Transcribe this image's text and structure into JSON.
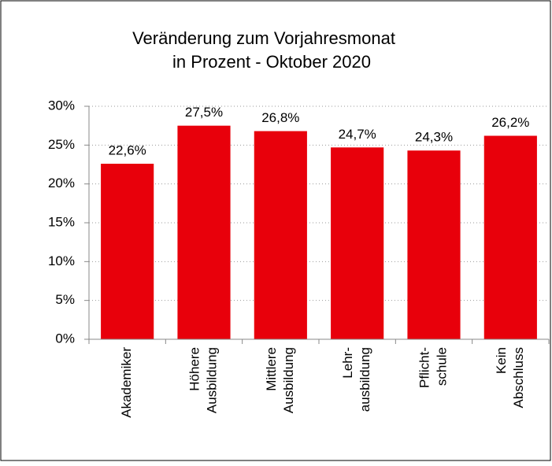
{
  "chart_data": {
    "type": "bar",
    "title": [
      "Veränderung zum Vorjahresmonat",
      "in Prozent - Oktober 2020"
    ],
    "categories": [
      [
        "Akademiker"
      ],
      [
        "Höhere",
        "Ausbildung"
      ],
      [
        "Mittlere",
        "Ausbildung"
      ],
      [
        "Lehr-",
        "ausbildung"
      ],
      [
        "Pflicht-",
        "schule"
      ],
      [
        "Kein",
        "Abschluss"
      ]
    ],
    "values": [
      22.6,
      27.5,
      26.8,
      24.7,
      24.3,
      26.2
    ],
    "value_labels": [
      "22,6%",
      "27,5%",
      "26,8%",
      "24,7%",
      "24,3%",
      "26,2%"
    ],
    "color": "#e8000b",
    "ylim": [
      0,
      30
    ],
    "yticks": [
      {
        "value": 0,
        "label": "0%"
      },
      {
        "value": 5,
        "label": "5%"
      },
      {
        "value": 10,
        "label": "10%"
      },
      {
        "value": 15,
        "label": "15%"
      },
      {
        "value": 20,
        "label": "20%"
      },
      {
        "value": 25,
        "label": "25%"
      },
      {
        "value": 30,
        "label": "30%"
      }
    ],
    "grid": true
  }
}
